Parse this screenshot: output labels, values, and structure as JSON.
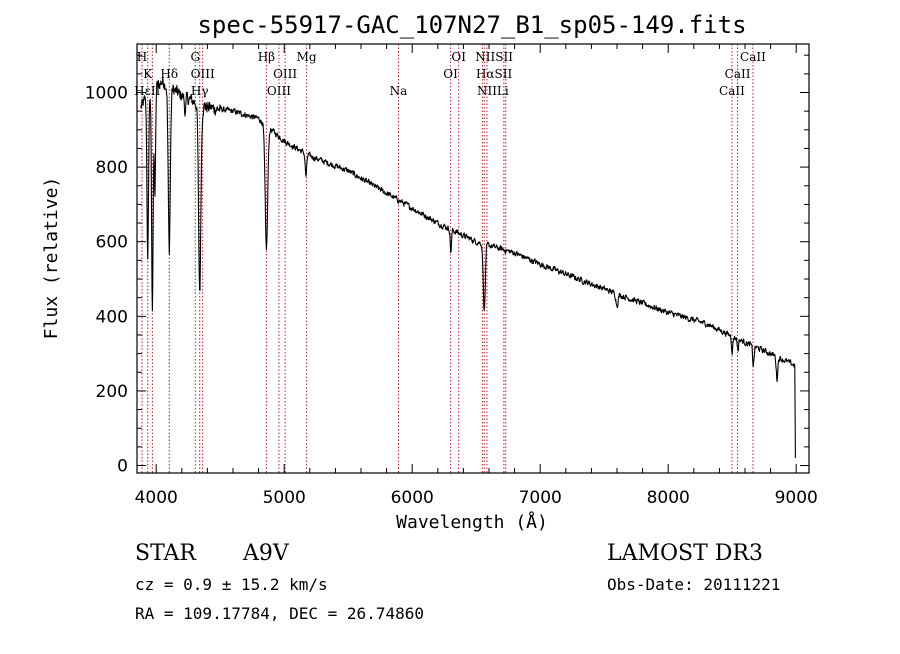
{
  "chart_data": {
    "type": "line",
    "title": "spec-55917-GAC_107N27_B1_sp05-149.fits",
    "xlabel": "Wavelength (Å)",
    "ylabel": "Flux (relative)",
    "xlim": [
      3850,
      9100
    ],
    "ylim": [
      -20,
      1130
    ],
    "x_ticks": [
      4000,
      5000,
      6000,
      7000,
      8000,
      9000
    ],
    "y_ticks": [
      0,
      200,
      400,
      600,
      800,
      1000
    ],
    "grid": false,
    "line_color": "#b22222",
    "spectrum_color": "#000000",
    "continuum": {
      "x": [
        3880,
        3950,
        4050,
        4200,
        4400,
        4600,
        4800,
        5000,
        5200,
        5500,
        5800,
        6000,
        6200,
        6500,
        6800,
        7000,
        7300,
        7600,
        8000,
        8300,
        8600,
        8800,
        8980
      ],
      "flux": [
        960,
        1000,
        1030,
        990,
        960,
        950,
        930,
        870,
        830,
        790,
        730,
        690,
        650,
        600,
        570,
        540,
        500,
        460,
        410,
        380,
        330,
        300,
        270
      ]
    },
    "absorptions": [
      {
        "center": 3934,
        "depth": 450,
        "width": 6
      },
      {
        "center": 3970,
        "depth": 600,
        "width": 6
      },
      {
        "center": 3990,
        "depth": 300,
        "width": 5
      },
      {
        "center": 4102,
        "depth": 440,
        "width": 8
      },
      {
        "center": 4227,
        "depth": 40,
        "width": 5
      },
      {
        "center": 4340,
        "depth": 500,
        "width": 9
      },
      {
        "center": 4861,
        "depth": 330,
        "width": 10
      },
      {
        "center": 5170,
        "depth": 60,
        "width": 6
      },
      {
        "center": 6302,
        "depth": 60,
        "width": 5
      },
      {
        "center": 6563,
        "depth": 180,
        "width": 8
      },
      {
        "center": 7600,
        "depth": 30,
        "width": 8
      },
      {
        "center": 8500,
        "depth": 40,
        "width": 5
      },
      {
        "center": 8545,
        "depth": 30,
        "width": 5
      },
      {
        "center": 8665,
        "depth": 50,
        "width": 6
      },
      {
        "center": 8850,
        "depth": 60,
        "width": 6
      }
    ],
    "end_drop": {
      "from": 8990,
      "to_flux": 20
    },
    "spectral_lines": [
      {
        "label": "H",
        "x": 3889,
        "row": 0
      },
      {
        "label": "K",
        "x": 3934,
        "row": 1
      },
      {
        "label": "Hδ",
        "x": 4102,
        "row": 1
      },
      {
        "label": "HεII",
        "x": 3930,
        "row": 2
      },
      {
        "label": "G",
        "x": 4305,
        "row": 0
      },
      {
        "label": "OIII",
        "x": 4363,
        "row": 1
      },
      {
        "label": "Hγ",
        "x": 4340,
        "row": 2
      },
      {
        "label": "Hβ",
        "x": 4861,
        "row": 0
      },
      {
        "label": "OIII",
        "x": 5007,
        "row": 1
      },
      {
        "label": "OIII",
        "x": 4959,
        "row": 2
      },
      {
        "label": "Mg",
        "x": 5175,
        "row": 0
      },
      {
        "label": "Na",
        "x": 5893,
        "row": 2
      },
      {
        "label": "OI",
        "x": 6363,
        "row": 0
      },
      {
        "label": "OI",
        "x": 6300,
        "row": 1
      },
      {
        "label": "NIISII",
        "x": 6640,
        "row": 0
      },
      {
        "label": "HαSII",
        "x": 6640,
        "row": 1
      },
      {
        "label": "NII",
        "x": 6584,
        "row": 2
      },
      {
        "label": "Li",
        "x": 6708,
        "row": 2
      },
      {
        "label": "CaII",
        "x": 8662,
        "row": 0
      },
      {
        "label": "CaII",
        "x": 8542,
        "row": 1
      },
      {
        "label": "CaII",
        "x": 8498,
        "row": 2
      }
    ],
    "line_marker_x": [
      3889,
      3934,
      3970,
      4102,
      4305,
      4340,
      4363,
      4861,
      4959,
      5007,
      5175,
      5893,
      6300,
      6363,
      6548,
      6563,
      6584,
      6716,
      6731,
      8498,
      8542,
      8662
    ]
  },
  "info": {
    "object_class": "STAR",
    "subclass": "A9V",
    "survey": "LAMOST DR3",
    "redshift": "cz = 0.9 ± 15.2 km/s",
    "obs_date": "Obs-Date: 20111221",
    "coords": "RA = 109.17784, DEC =  26.74860"
  }
}
